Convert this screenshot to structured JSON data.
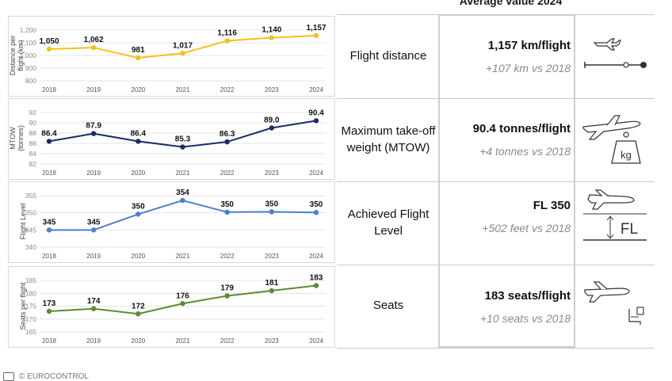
{
  "header": {
    "title": "Average value 2024"
  },
  "footer": {
    "text": "© EUROCONTROL"
  },
  "colors": {
    "distance": "#f2c218",
    "mtow": "#1b2a6b",
    "fl": "#4a7fd4",
    "seats": "#5b8c32"
  },
  "rows": [
    {
      "label": "Flight distance",
      "value": "1,157 km/flight",
      "delta": "+107 km vs 2018",
      "icon": "plane-distance-icon"
    },
    {
      "label": "Maximum take-off weight (MTOW)",
      "value": "90.4 tonnes/flight",
      "delta": "+4 tonnes vs 2018",
      "icon": "plane-weight-kg-icon"
    },
    {
      "label": "Achieved Flight Level",
      "value": "FL 350",
      "delta": "+502 feet vs 2018",
      "icon": "plane-flight-level-icon",
      "icon_text": "FL"
    },
    {
      "label": "Seats",
      "value": "183 seats/flight",
      "delta": "+10 seats vs 2018",
      "icon": "plane-seat-icon"
    }
  ],
  "chart_data": [
    {
      "type": "line",
      "ylabel": "Distance per flight (km)",
      "x": [
        "2018",
        "2019",
        "2020",
        "2021",
        "2022",
        "2023",
        "2024"
      ],
      "values": [
        1050,
        1062,
        981,
        1017,
        1116,
        1140,
        1157
      ],
      "data_labels": [
        "1,050",
        "1,062",
        "981",
        "1,017",
        "1,116",
        "1,140",
        "1,157"
      ],
      "yticks": [
        "800",
        "900",
        "1,000",
        "1,100",
        "1,200"
      ],
      "ylim": [
        800,
        1200
      ],
      "color": "#f2c218",
      "grid": true
    },
    {
      "type": "line",
      "ylabel": "MTOW (tonnes)",
      "x": [
        "2018",
        "2019",
        "2020",
        "2021",
        "2022",
        "2023",
        "2024"
      ],
      "values": [
        86.4,
        87.9,
        86.4,
        85.3,
        86.3,
        89.0,
        90.4
      ],
      "data_labels": [
        "86.4",
        "87.9",
        "86.4",
        "85.3",
        "86.3",
        "89.0",
        "90.4"
      ],
      "yticks": [
        "82",
        "84",
        "86",
        "88",
        "90",
        "92"
      ],
      "ylim": [
        82,
        92
      ],
      "color": "#1b2a6b",
      "grid": true
    },
    {
      "type": "line",
      "ylabel": "Flight Level",
      "x": [
        "2018",
        "2019",
        "2020",
        "2021",
        "2022",
        "2023",
        "2024"
      ],
      "values": [
        345,
        345,
        349.6,
        353.6,
        350.2,
        350.3,
        350.1
      ],
      "data_labels": [
        "345",
        "345",
        "350",
        "354",
        "350",
        "350",
        "350"
      ],
      "yticks": [
        "340",
        "345",
        "350",
        "355"
      ],
      "ylim": [
        340,
        355
      ],
      "color": "#4a7fd4",
      "grid": true
    },
    {
      "type": "line",
      "ylabel": "Seats per flight",
      "x": [
        "2018",
        "2019",
        "2020",
        "2021",
        "2022",
        "2023",
        "2024"
      ],
      "values": [
        173,
        174,
        172,
        176,
        179,
        181,
        183
      ],
      "data_labels": [
        "173",
        "174",
        "172",
        "176",
        "179",
        "181",
        "183"
      ],
      "yticks": [
        "165",
        "170",
        "175",
        "180",
        "185"
      ],
      "ylim": [
        165,
        185
      ],
      "color": "#5b8c32",
      "grid": true
    }
  ]
}
